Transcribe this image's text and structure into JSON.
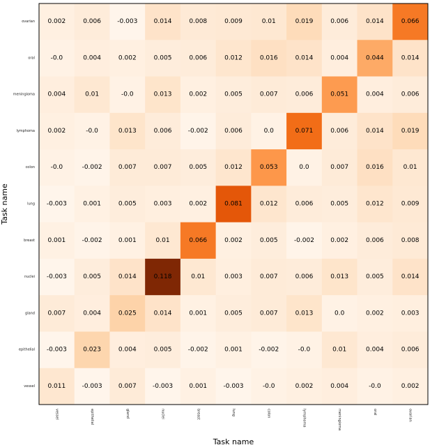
{
  "chart_data": {
    "type": "heatmap",
    "title": "",
    "xlabel": "Task name",
    "ylabel": "Task name",
    "x_categories": [
      "vessel",
      "epithelial",
      "gland",
      "nuclei",
      "breast",
      "lung",
      "colon",
      "lymphoma",
      "meningioma",
      "oral",
      "ovarian"
    ],
    "y_categories": [
      "ovarian",
      "oral",
      "meningioma",
      "lymphoma",
      "colon",
      "lung",
      "breast",
      "nuclei",
      "gland",
      "epithelial",
      "vessel"
    ],
    "values": [
      [
        "0.002",
        "0.006",
        "-0.003",
        "0.014",
        "0.008",
        "0.009",
        "0.01",
        "0.019",
        "0.006",
        "0.014",
        "0.066"
      ],
      [
        "-0.0",
        "0.004",
        "0.002",
        "0.005",
        "0.006",
        "0.012",
        "0.016",
        "0.014",
        "0.004",
        "0.044",
        "0.014"
      ],
      [
        "0.004",
        "0.01",
        "-0.0",
        "0.013",
        "0.002",
        "0.005",
        "0.007",
        "0.006",
        "0.051",
        "0.004",
        "0.006"
      ],
      [
        "0.002",
        "-0.0",
        "0.013",
        "0.006",
        "-0.002",
        "0.006",
        "0.0",
        "0.071",
        "0.006",
        "0.014",
        "0.019"
      ],
      [
        "-0.0",
        "-0.002",
        "0.007",
        "0.007",
        "0.005",
        "0.012",
        "0.053",
        "0.0",
        "0.007",
        "0.016",
        "0.01"
      ],
      [
        "-0.003",
        "0.001",
        "0.005",
        "0.003",
        "0.002",
        "0.081",
        "0.012",
        "0.006",
        "0.005",
        "0.012",
        "0.009"
      ],
      [
        "0.001",
        "-0.002",
        "0.001",
        "0.01",
        "0.066",
        "0.002",
        "0.005",
        "-0.002",
        "0.002",
        "0.006",
        "0.008"
      ],
      [
        "-0.003",
        "0.005",
        "0.014",
        "0.118",
        "0.01",
        "0.003",
        "0.007",
        "0.006",
        "0.013",
        "0.005",
        "0.014"
      ],
      [
        "0.007",
        "0.004",
        "0.025",
        "0.014",
        "0.001",
        "0.005",
        "0.007",
        "0.013",
        "0.0",
        "0.002",
        "0.003"
      ],
      [
        "-0.003",
        "0.023",
        "0.004",
        "0.005",
        "-0.002",
        "0.001",
        "-0.002",
        "-0.0",
        "0.01",
        "0.004",
        "0.006"
      ],
      [
        "0.011",
        "-0.003",
        "0.007",
        "-0.003",
        "0.001",
        "-0.003",
        "-0.0",
        "0.002",
        "0.004",
        "-0.0",
        "0.002"
      ]
    ],
    "vmin": -0.003,
    "vmax": 0.118,
    "colormap": "Oranges",
    "grid": false,
    "legend": "none"
  }
}
